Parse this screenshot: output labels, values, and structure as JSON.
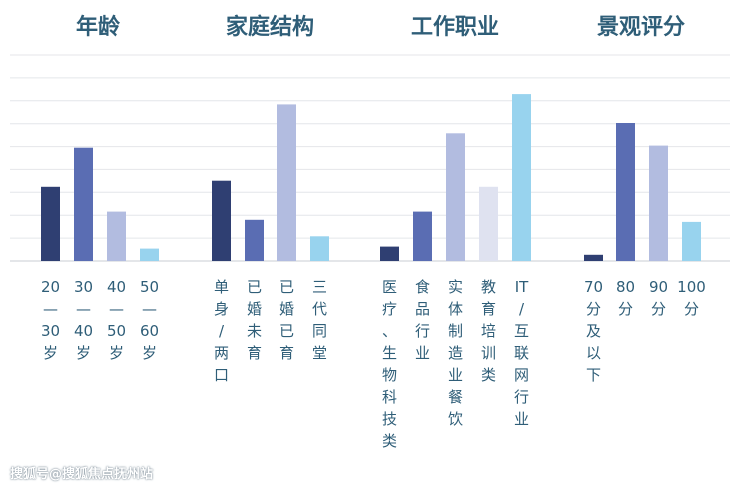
{
  "chart_data": {
    "type": "bar",
    "title": "",
    "xlabel": "",
    "ylabel": "",
    "ylim": [
      0,
      100
    ],
    "grid": true,
    "grid_lines": 9,
    "groups": [
      {
        "title": "年龄",
        "categories": [
          "20—30岁",
          "30—40岁",
          "40—50岁",
          "50—60岁"
        ],
        "values": [
          36,
          55,
          24,
          6
        ],
        "colors": [
          "#2f3f72",
          "#5a6db3",
          "#b2bce0",
          "#98d3ee"
        ]
      },
      {
        "title": "家庭结构",
        "categories": [
          "单身/两口",
          "已婚未育",
          "已婚已育",
          "三代同堂"
        ],
        "values": [
          39,
          20,
          76,
          12
        ],
        "colors": [
          "#2f3f72",
          "#5a6db3",
          "#b2bce0",
          "#98d3ee"
        ]
      },
      {
        "title": "工作职业",
        "categories": [
          "医疗、生物科技类",
          "食品行业",
          "实体制造业餐饮",
          "教育培训类",
          "IT/互联网行业"
        ],
        "values": [
          7,
          24,
          62,
          36,
          81
        ],
        "colors": [
          "#2f3f72",
          "#5a6db3",
          "#b2bce0",
          "#dfe2f0",
          "#98d3ee"
        ]
      },
      {
        "title": "景观评分",
        "categories": [
          "70分及以下",
          "80分",
          "90分",
          "100分"
        ],
        "values": [
          3,
          67,
          56,
          19
        ],
        "colors": [
          "#2f3f72",
          "#5a6db3",
          "#b2bce0",
          "#98d3ee"
        ]
      }
    ]
  },
  "watermark": "搜狐号@搜狐焦点抚州站"
}
